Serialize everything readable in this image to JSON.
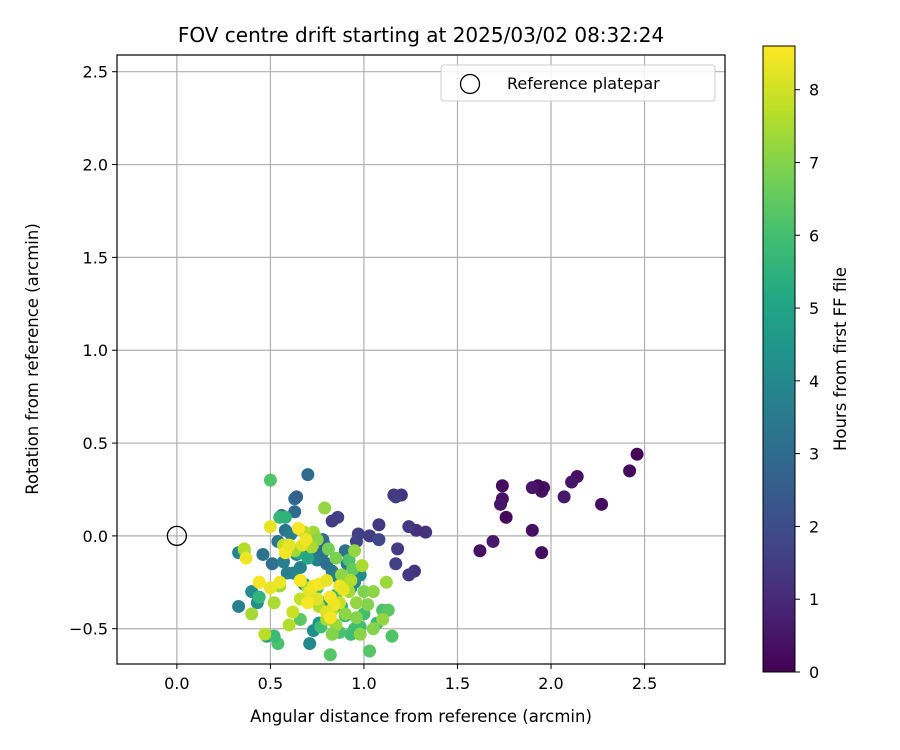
{
  "chart_data": {
    "type": "scatter",
    "title": "FOV centre drift starting at 2025/03/02 08:32:24",
    "xlabel": "Angular distance from reference (arcmin)",
    "ylabel": "Rotation from reference (arcmin)",
    "xlim": [
      -0.32,
      2.93
    ],
    "ylim": [
      -0.69,
      2.59
    ],
    "xticks": [
      0.0,
      0.5,
      1.0,
      1.5,
      2.0,
      2.5
    ],
    "xtick_labels": [
      "0.0",
      "0.5",
      "1.0",
      "1.5",
      "2.0",
      "2.5"
    ],
    "yticks": [
      -0.5,
      0.0,
      0.5,
      1.0,
      1.5,
      2.0,
      2.5
    ],
    "ytick_labels": [
      "−0.5",
      "0.0",
      "0.5",
      "1.0",
      "1.5",
      "2.0",
      "2.5"
    ],
    "grid": true,
    "legend": {
      "position": "top-right",
      "entries": [
        "Reference platepar"
      ]
    },
    "reference": {
      "x": 0.0,
      "y": 0.0,
      "label": "Reference platepar"
    },
    "colorbar": {
      "label": "Hours from first FF file",
      "colormap": "viridis",
      "range": [
        0,
        8.6
      ],
      "ticks": [
        0,
        1,
        2,
        3,
        4,
        5,
        6,
        7,
        8
      ],
      "tick_labels": [
        "0",
        "1",
        "2",
        "3",
        "4",
        "5",
        "6",
        "7",
        "8"
      ]
    },
    "points": [
      [
        2.46,
        0.44,
        0.1
      ],
      [
        2.42,
        0.35,
        0.2
      ],
      [
        2.27,
        0.17,
        0.3
      ],
      [
        2.14,
        0.32,
        0.4
      ],
      [
        2.11,
        0.29,
        0.5
      ],
      [
        2.07,
        0.21,
        0.6
      ],
      [
        1.96,
        0.26,
        0.3
      ],
      [
        1.95,
        0.24,
        0.4
      ],
      [
        1.93,
        0.27,
        0.2
      ],
      [
        1.9,
        0.26,
        0.5
      ],
      [
        1.95,
        -0.09,
        0.3
      ],
      [
        1.9,
        0.03,
        0.4
      ],
      [
        1.76,
        0.1,
        0.2
      ],
      [
        1.74,
        0.27,
        0.3
      ],
      [
        1.74,
        0.2,
        0.4
      ],
      [
        1.73,
        0.17,
        0.5
      ],
      [
        1.69,
        -0.03,
        0.6
      ],
      [
        1.62,
        -0.08,
        0.4
      ],
      [
        1.33,
        0.02,
        1.3
      ],
      [
        1.28,
        0.03,
        1.2
      ],
      [
        1.24,
        0.05,
        1.4
      ],
      [
        1.2,
        0.22,
        1.3
      ],
      [
        1.16,
        0.22,
        1.4
      ],
      [
        1.17,
        0.21,
        1.5
      ],
      [
        1.27,
        -0.19,
        1.3
      ],
      [
        1.24,
        -0.21,
        1.4
      ],
      [
        1.18,
        -0.07,
        1.5
      ],
      [
        1.17,
        -0.15,
        1.6
      ],
      [
        1.08,
        0.06,
        1.4
      ],
      [
        1.03,
        0.0,
        1.5
      ],
      [
        0.97,
        0.01,
        1.6
      ],
      [
        0.96,
        -0.03,
        1.7
      ],
      [
        1.08,
        -0.02,
        1.8
      ],
      [
        0.86,
        0.1,
        1.6
      ],
      [
        0.83,
        0.08,
        1.5
      ],
      [
        0.7,
        0.33,
        3.0
      ],
      [
        0.63,
        0.2,
        3.2
      ],
      [
        0.64,
        0.21,
        2.7
      ],
      [
        0.63,
        0.13,
        3.0
      ],
      [
        0.56,
        0.11,
        2.9
      ],
      [
        0.58,
        0.03,
        3.3
      ],
      [
        0.61,
        0.01,
        3.6
      ],
      [
        0.54,
        -0.03,
        3.4
      ],
      [
        0.46,
        -0.1,
        3.3
      ],
      [
        0.51,
        -0.15,
        3.2
      ],
      [
        0.57,
        -0.14,
        3.6
      ],
      [
        0.62,
        -0.2,
        3.9
      ],
      [
        0.66,
        -0.17,
        3.8
      ],
      [
        0.7,
        -0.08,
        3.5
      ],
      [
        0.72,
        -0.11,
        3.4
      ],
      [
        0.75,
        -0.13,
        3.6
      ],
      [
        0.78,
        -0.09,
        3.3
      ],
      [
        0.78,
        -0.02,
        3.0
      ],
      [
        0.79,
        -0.05,
        2.9
      ],
      [
        0.8,
        -0.15,
        3.1
      ],
      [
        0.83,
        -0.19,
        3.4
      ],
      [
        0.86,
        -0.22,
        3.7
      ],
      [
        0.9,
        -0.08,
        3.2
      ],
      [
        0.91,
        -0.15,
        3.5
      ],
      [
        0.93,
        -0.28,
        3.8
      ],
      [
        0.95,
        -0.25,
        4.0
      ],
      [
        0.98,
        -0.21,
        4.2
      ],
      [
        0.33,
        -0.38,
        3.7
      ],
      [
        0.33,
        -0.09,
        3.9
      ],
      [
        0.4,
        -0.3,
        4.1
      ],
      [
        0.43,
        -0.36,
        4.3
      ],
      [
        0.48,
        -0.54,
        4.4
      ],
      [
        0.71,
        -0.58,
        4.0
      ],
      [
        0.73,
        -0.51,
        4.2
      ],
      [
        0.76,
        -0.47,
        4.4
      ],
      [
        0.78,
        -0.36,
        4.5
      ],
      [
        0.74,
        -0.35,
        3.8
      ],
      [
        0.68,
        -0.26,
        3.9
      ],
      [
        0.59,
        -0.2,
        3.7
      ],
      [
        0.64,
        -0.1,
        3.8
      ],
      [
        0.55,
        0.1,
        5.7
      ],
      [
        0.58,
        0.1,
        5.5
      ],
      [
        0.5,
        0.3,
        6.2
      ],
      [
        0.65,
        -0.09,
        5.3
      ],
      [
        0.7,
        -0.12,
        5.1
      ],
      [
        0.75,
        -0.28,
        5.8
      ],
      [
        0.85,
        -0.32,
        5.6
      ],
      [
        0.88,
        -0.38,
        5.4
      ],
      [
        0.9,
        -0.43,
        5.7
      ],
      [
        0.95,
        -0.5,
        5.9
      ],
      [
        1.0,
        -0.42,
        6.0
      ],
      [
        1.03,
        -0.62,
        6.3
      ],
      [
        1.07,
        -0.47,
        5.8
      ],
      [
        1.1,
        -0.4,
        6.1
      ],
      [
        1.13,
        -0.4,
        6.4
      ],
      [
        1.15,
        -0.54,
        6.2
      ],
      [
        0.82,
        -0.64,
        6.3
      ],
      [
        0.77,
        -0.49,
        5.9
      ],
      [
        0.66,
        -0.45,
        6.4
      ],
      [
        0.54,
        -0.58,
        6.1
      ],
      [
        0.52,
        -0.54,
        5.8
      ],
      [
        0.44,
        -0.33,
        5.6
      ],
      [
        0.36,
        -0.08,
        5.8
      ],
      [
        0.98,
        -0.49,
        6.0
      ],
      [
        0.93,
        -0.53,
        5.9
      ],
      [
        0.87,
        -0.52,
        6.1
      ],
      [
        0.92,
        -0.13,
        6.2
      ],
      [
        0.94,
        -0.18,
        6.5
      ],
      [
        0.79,
        0.15,
        7.2
      ],
      [
        0.73,
        0.02,
        7.4
      ],
      [
        0.75,
        -0.02,
        7.1
      ],
      [
        0.81,
        -0.07,
        6.8
      ],
      [
        0.85,
        -0.12,
        6.9
      ],
      [
        0.88,
        -0.21,
        7.1
      ],
      [
        0.91,
        -0.27,
        7.3
      ],
      [
        0.95,
        -0.08,
        7.2
      ],
      [
        0.99,
        -0.16,
        7.5
      ],
      [
        1.0,
        -0.3,
        6.9
      ],
      [
        1.02,
        -0.37,
        7.0
      ],
      [
        1.05,
        -0.3,
        7.1
      ],
      [
        1.12,
        -0.25,
        7.3
      ],
      [
        1.1,
        -0.45,
        7.2
      ],
      [
        1.05,
        -0.5,
        7.0
      ],
      [
        0.96,
        -0.36,
        7.2
      ],
      [
        0.92,
        -0.3,
        7.4
      ],
      [
        0.9,
        -0.42,
        7.1
      ],
      [
        0.85,
        -0.48,
        7.3
      ],
      [
        0.83,
        -0.53,
        7.0
      ],
      [
        0.8,
        -0.45,
        7.4
      ],
      [
        0.76,
        -0.38,
        7.6
      ],
      [
        0.72,
        -0.33,
        7.7
      ],
      [
        0.7,
        -0.28,
        7.5
      ],
      [
        0.66,
        -0.34,
        7.8
      ],
      [
        0.62,
        -0.41,
        7.9
      ],
      [
        0.6,
        -0.48,
        7.6
      ],
      [
        0.55,
        -0.27,
        7.3
      ],
      [
        0.52,
        -0.36,
        7.5
      ],
      [
        0.47,
        -0.53,
        7.7
      ],
      [
        0.44,
        -0.25,
        7.9
      ],
      [
        0.4,
        -0.42,
        7.4
      ],
      [
        0.36,
        -0.07,
        7.6
      ],
      [
        0.57,
        -0.05,
        7.8
      ],
      [
        0.63,
        -0.08,
        7.4
      ],
      [
        0.68,
        0.02,
        7.7
      ],
      [
        0.72,
        -0.06,
        7.5
      ],
      [
        0.87,
        -0.36,
        7.9
      ],
      [
        0.93,
        -0.24,
        7.6
      ],
      [
        0.83,
        -0.4,
        7.7
      ],
      [
        0.96,
        -0.44,
        7.0
      ],
      [
        0.98,
        -0.53,
        7.1
      ],
      [
        0.5,
        0.05,
        8.3
      ],
      [
        0.37,
        -0.12,
        8.4
      ],
      [
        0.44,
        -0.25,
        8.5
      ],
      [
        0.5,
        -0.28,
        8.3
      ],
      [
        0.55,
        -0.25,
        8.4
      ],
      [
        0.58,
        -0.09,
        8.5
      ],
      [
        0.6,
        -0.05,
        8.3
      ],
      [
        0.65,
        0.04,
        8.5
      ],
      [
        0.67,
        -0.05,
        8.2
      ],
      [
        0.69,
        -0.02,
        8.4
      ],
      [
        0.66,
        -0.24,
        8.5
      ],
      [
        0.71,
        -0.3,
        8.3
      ],
      [
        0.73,
        -0.27,
        8.4
      ],
      [
        0.76,
        -0.26,
        8.5
      ],
      [
        0.8,
        -0.24,
        8.3
      ],
      [
        0.82,
        -0.33,
        8.5
      ],
      [
        0.84,
        -0.37,
        8.4
      ],
      [
        0.8,
        -0.41,
        8.2
      ],
      [
        0.82,
        -0.44,
        8.5
      ],
      [
        0.87,
        -0.27,
        8.4
      ],
      [
        0.89,
        -0.29,
        8.3
      ],
      [
        0.75,
        -0.34,
        8.2
      ],
      [
        0.7,
        -0.36,
        8.5
      ]
    ]
  }
}
